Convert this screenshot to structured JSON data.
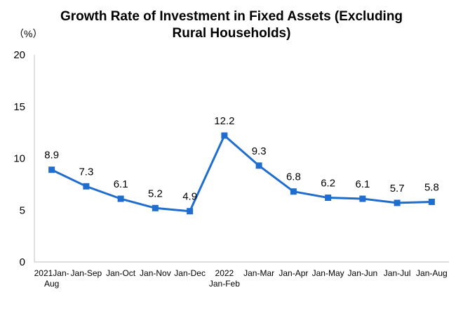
{
  "chart_data": {
    "type": "line",
    "title_line1": "Growth Rate of Investment in Fixed Assets (Excluding",
    "title_line2": "Rural Households)",
    "unit_label": "（%）",
    "categories": [
      [
        "2021Jan-",
        "Aug"
      ],
      [
        "Jan-Sep"
      ],
      [
        "Jan-Oct"
      ],
      [
        "Jan-Nov"
      ],
      [
        "Jan-Dec"
      ],
      [
        "2022",
        "Jan-Feb"
      ],
      [
        "Jan-Mar"
      ],
      [
        "Jan-Apr"
      ],
      [
        "Jan-May"
      ],
      [
        "Jan-Jun"
      ],
      [
        "Jan-Jul"
      ],
      [
        "Jan-Aug"
      ]
    ],
    "values": [
      8.9,
      7.3,
      6.1,
      5.2,
      4.9,
      12.2,
      9.3,
      6.8,
      6.2,
      6.1,
      5.7,
      5.8
    ],
    "data_labels": [
      "8.9",
      "7.3",
      "6.1",
      "5.2",
      "4.9",
      "12.2",
      "9.3",
      "6.8",
      "6.2",
      "6.1",
      "5.7",
      "5.8"
    ],
    "yticks": [
      0,
      5,
      10,
      15,
      20
    ],
    "ylim": [
      0,
      20
    ],
    "grid": false,
    "line_color": "#1f6ecf",
    "marker_color": "#1f6ecf"
  }
}
